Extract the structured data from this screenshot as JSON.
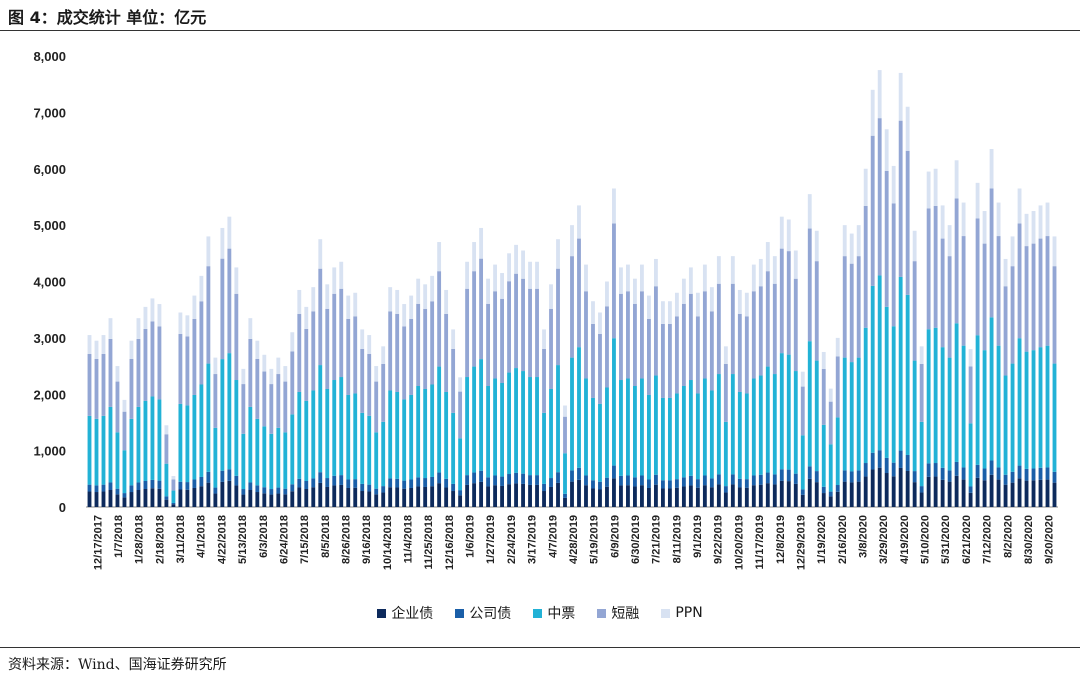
{
  "header": {
    "title": "图 4：成交统计 单位：亿元"
  },
  "footer": {
    "source": "资料来源：Wind、国海证券研究所"
  },
  "chart_data": {
    "type": "bar",
    "stacked": true,
    "title": "图 4：成交统计 单位：亿元",
    "xlabel": "",
    "ylabel": "",
    "ylim": [
      0,
      8000
    ],
    "yticks": [
      "0",
      "1,000",
      "2,000",
      "3,000",
      "4,000",
      "5,000",
      "6,000",
      "7,000",
      "8,000"
    ],
    "grid": false,
    "legend_position": "bottom",
    "x_tick_labels": [
      "12/17/2017",
      "1/7/2018",
      "1/28/2018",
      "2/18/2018",
      "3/11/2018",
      "4/1/2018",
      "4/22/2018",
      "5/13/2018",
      "6/3/2018",
      "6/24/2018",
      "7/15/2018",
      "8/5/2018",
      "8/26/2018",
      "9/16/2018",
      "10/14/2018",
      "11/4/2018",
      "11/25/2018",
      "12/16/2018",
      "1/6/2019",
      "1/27/2019",
      "2/24/2019",
      "3/17/2019",
      "4/7/2019",
      "4/28/2019",
      "5/19/2019",
      "6/9/2019",
      "6/30/2019",
      "7/21/2019",
      "8/11/2019",
      "9/1/2019",
      "9/22/2019",
      "10/20/2019",
      "11/17/2019",
      "12/8/2019",
      "12/29/2019",
      "1/19/2020",
      "2/16/2020",
      "3/8/2020",
      "3/29/2020",
      "4/19/2020",
      "5/10/2020",
      "5/31/2020",
      "6/21/2020",
      "7/12/2020",
      "8/2/2020",
      "8/30/2020",
      "9/20/2020"
    ],
    "totals": [
      3050,
      2950,
      3050,
      3350,
      2500,
      1900,
      2950,
      3350,
      3550,
      3700,
      3600,
      1450,
      550,
      3450,
      3400,
      3750,
      4100,
      4800,
      2650,
      4950,
      5150,
      4250,
      2450,
      3350,
      2950,
      2700,
      2450,
      2650,
      2500,
      3100,
      3850,
      3550,
      3900,
      4750,
      3950,
      4250,
      4350,
      3750,
      3800,
      3150,
      3050,
      2500,
      2850,
      3900,
      3850,
      3600,
      3750,
      4050,
      3950,
      4100,
      4700,
      3850,
      3150,
      2300,
      4350,
      4700,
      4950,
      4050,
      4300,
      4150,
      4500,
      4650,
      4550,
      4350,
      4350,
      3150,
      3950,
      4750,
      1800,
      5000,
      5350,
      4300,
      3650,
      3450,
      4000,
      5650,
      4250,
      4300,
      4050,
      4300,
      3750,
      4400,
      3650,
      3650,
      3800,
      4050,
      4250,
      3800,
      4300,
      3900,
      4450,
      2850,
      4450,
      3850,
      3800,
      4300,
      4400,
      4700,
      4450,
      5150,
      5100,
      4550,
      2400,
      5550,
      4900,
      2750,
      2100,
      3000,
      5000,
      4850,
      5000,
      6000,
      7400,
      7750,
      6700,
      6050,
      7700,
      7100,
      4900,
      2850,
      5950,
      6000,
      5350,
      5000,
      6150,
      5400,
      2800,
      5750,
      5250,
      6350,
      5400,
      4400,
      4800,
      5650,
      5200,
      5250,
      5350,
      5400,
      4800
    ],
    "series": [
      {
        "name": "企业债",
        "color": "#0d2a5c",
        "share": 0.09
      },
      {
        "name": "公司债",
        "color": "#1a5fa8",
        "share": 0.04
      },
      {
        "name": "中票",
        "color": "#22b2d6",
        "share": 0.4
      },
      {
        "name": "短融",
        "color": "#93a6d4",
        "share": 0.36
      },
      {
        "name": "PPN",
        "color": "#d8e2f2",
        "share": 0.11
      }
    ]
  }
}
